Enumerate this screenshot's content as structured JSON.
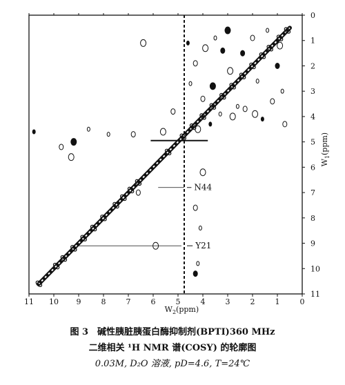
{
  "chart_data": {
    "type": "heatmap",
    "subtype": "2D NMR contour (COSY)",
    "x_axis": {
      "label": "W",
      "label_sub": "2",
      "label_suffix": "(ppm)",
      "range": [
        11,
        0
      ],
      "reversed": true,
      "ticks": [
        "11",
        "10",
        "9",
        "8",
        "7",
        "6",
        "5",
        "4",
        "3",
        "2",
        "1",
        "0"
      ]
    },
    "y_axis": {
      "label": "W",
      "label_sub": "1",
      "label_suffix": "(ppm)",
      "range": [
        0,
        11
      ],
      "ticks": [
        "0",
        "1",
        "2",
        "3",
        "4",
        "5",
        "6",
        "7",
        "8",
        "9",
        "10",
        "11"
      ],
      "position": "right"
    },
    "diagonal": [
      [
        0.5,
        0.5
      ],
      [
        10.6,
        10.6
      ]
    ],
    "water_line_ppm": 4.75,
    "annotations": [
      {
        "label": "N44",
        "x": 4.75,
        "y": 6.8
      },
      {
        "label": "Y21",
        "x": 4.75,
        "y": 9.1
      }
    ],
    "cross_peaks": [
      {
        "x": 4.6,
        "y": 1.1
      },
      {
        "x": 4.3,
        "y": 1.9
      },
      {
        "x": 3.9,
        "y": 1.3
      },
      {
        "x": 3.5,
        "y": 0.9
      },
      {
        "x": 3.2,
        "y": 1.4
      },
      {
        "x": 2.9,
        "y": 2.2
      },
      {
        "x": 4.5,
        "y": 2.7
      },
      {
        "x": 4.0,
        "y": 3.3
      },
      {
        "x": 3.6,
        "y": 2.8
      },
      {
        "x": 2.6,
        "y": 3.6
      },
      {
        "x": 2.3,
        "y": 3.7
      },
      {
        "x": 1.9,
        "y": 3.9
      },
      {
        "x": 1.6,
        "y": 4.1
      },
      {
        "x": 1.2,
        "y": 3.4
      },
      {
        "x": 2.8,
        "y": 4.0
      },
      {
        "x": 3.3,
        "y": 3.9
      },
      {
        "x": 1.0,
        "y": 2.0
      },
      {
        "x": 0.9,
        "y": 1.2
      },
      {
        "x": 1.4,
        "y": 0.6
      },
      {
        "x": 2.0,
        "y": 0.9
      },
      {
        "x": 3.0,
        "y": 0.6
      },
      {
        "x": 0.8,
        "y": 3.0
      },
      {
        "x": 0.7,
        "y": 4.3
      },
      {
        "x": 4.2,
        "y": 4.5
      },
      {
        "x": 3.7,
        "y": 4.3
      },
      {
        "x": 5.2,
        "y": 3.8
      },
      {
        "x": 5.6,
        "y": 4.6
      },
      {
        "x": 1.8,
        "y": 2.6
      },
      {
        "x": 2.4,
        "y": 1.5
      },
      {
        "x": 6.4,
        "y": 1.1
      },
      {
        "x": 8.6,
        "y": 4.5
      },
      {
        "x": 9.7,
        "y": 5.2
      },
      {
        "x": 9.2,
        "y": 5.0
      },
      {
        "x": 7.8,
        "y": 4.7
      },
      {
        "x": 6.8,
        "y": 4.7
      },
      {
        "x": 9.3,
        "y": 5.6
      },
      {
        "x": 10.8,
        "y": 4.6
      },
      {
        "x": 6.6,
        "y": 7.0
      },
      {
        "x": 5.9,
        "y": 9.1
      },
      {
        "x": 4.2,
        "y": 9.8
      },
      {
        "x": 4.3,
        "y": 10.2
      },
      {
        "x": 4.0,
        "y": 6.2
      },
      {
        "x": 4.1,
        "y": 8.4
      },
      {
        "x": 4.3,
        "y": 7.6
      }
    ]
  },
  "caption": {
    "line1": "图 3　碱性胰脏胰蛋白酶抑制剂(BPTI)360 MHz",
    "line2": "二维相关 ¹H NMR 谱(COSY) 的轮廓图",
    "line3": "0.03M, D₂O 溶液, pD=4.6, T=24℃"
  }
}
